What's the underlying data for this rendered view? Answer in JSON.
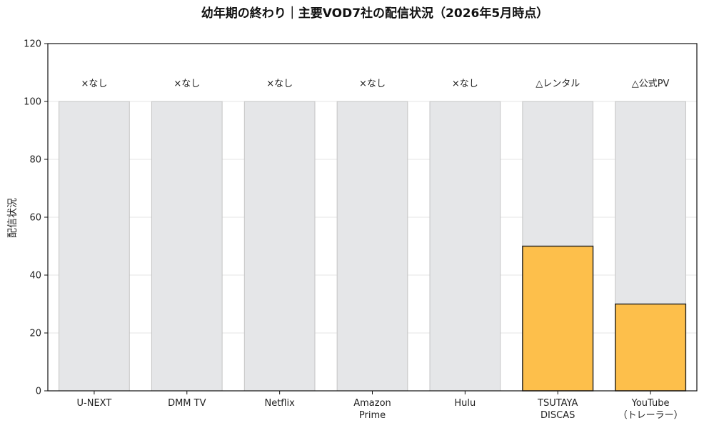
{
  "chart_data": {
    "type": "bar",
    "title": "幼年期の終わり｜主要VOD7社の配信状況（2026年5月時点）",
    "ylabel": "配信状況",
    "xlabel": "",
    "ylim": [
      0,
      120
    ],
    "yticks": [
      0,
      20,
      40,
      60,
      80,
      100,
      120
    ],
    "grid": true,
    "categories": [
      [
        "U-NEXT"
      ],
      [
        "DMM TV"
      ],
      [
        "Netflix"
      ],
      [
        "Amazon",
        "Prime"
      ],
      [
        "Hulu"
      ],
      [
        "TSUTAYA",
        "DISCAS"
      ],
      [
        "YouTube",
        "（トレーラー）"
      ]
    ],
    "background_values": [
      100,
      100,
      100,
      100,
      100,
      100,
      100
    ],
    "values": [
      0,
      0,
      0,
      0,
      0,
      50,
      30
    ],
    "status_labels": [
      "×なし",
      "×なし",
      "×なし",
      "×なし",
      "×なし",
      "△レンタル",
      "△公式PV"
    ],
    "colors": {
      "background_bar": "#e5e6e8",
      "background_edge": "#c4c4c4",
      "value_bar": "#fdbf4b",
      "value_edge": "#222222",
      "grid": "#e6e6e6",
      "axis": "#111111"
    }
  }
}
